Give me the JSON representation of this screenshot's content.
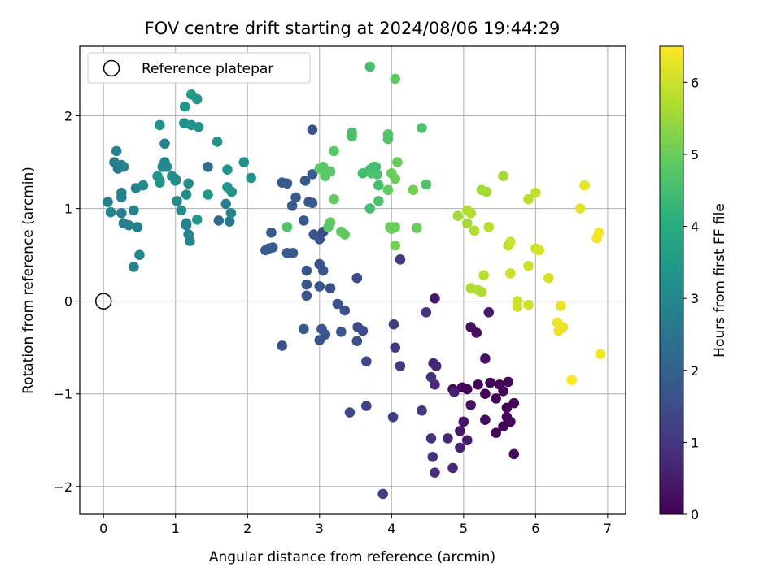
{
  "chart_data": {
    "type": "scatter",
    "title": "FOV centre drift starting at 2024/08/06 19:44:29",
    "xlabel": "Angular distance from reference (arcmin)",
    "ylabel": "Rotation from reference (arcmin)",
    "xlim": [
      -0.33,
      7.25
    ],
    "ylim": [
      -2.3,
      2.75
    ],
    "xticks": [
      0,
      1,
      2,
      3,
      4,
      5,
      6,
      7
    ],
    "yticks": [
      -2,
      -1,
      0,
      1,
      2
    ],
    "xtick_labels": [
      "0",
      "1",
      "2",
      "3",
      "4",
      "5",
      "6",
      "7"
    ],
    "ytick_labels": [
      "−2",
      "−1",
      "0",
      "1",
      "2"
    ],
    "grid": true,
    "legend": {
      "position": "top-left",
      "entries": [
        {
          "label": "Reference platepar",
          "marker": "hollow-circle"
        }
      ]
    },
    "reference_point": {
      "x": 0,
      "y": 0
    },
    "colorbar": {
      "label": "Hours from first FF file",
      "range": [
        0,
        6.5
      ],
      "ticks": [
        0,
        1,
        2,
        3,
        4,
        5,
        6
      ],
      "tick_labels": [
        "0",
        "1",
        "2",
        "3",
        "4",
        "5",
        "6"
      ],
      "colormap": "viridis"
    },
    "series": [
      {
        "columns": [
          "x",
          "y",
          "hours"
        ],
        "points": [
          [
            5.1,
            -0.28,
            0.3
          ],
          [
            5.18,
            -0.34,
            0.25
          ],
          [
            5.3,
            -0.62,
            0.3
          ],
          [
            5.35,
            -0.12,
            0.5
          ],
          [
            4.6,
            0.03,
            0.4
          ],
          [
            4.85,
            -0.95,
            0.1
          ],
          [
            4.98,
            -0.93,
            0.1
          ],
          [
            5.05,
            -0.95,
            0.05
          ],
          [
            5.2,
            -0.9,
            0.05
          ],
          [
            5.37,
            -0.88,
            0.1
          ],
          [
            5.5,
            -0.9,
            0.1
          ],
          [
            5.62,
            -0.87,
            0.05
          ],
          [
            5.3,
            -1.0,
            0.1
          ],
          [
            5.45,
            -1.05,
            0.05
          ],
          [
            5.55,
            -0.97,
            0.1
          ],
          [
            5.6,
            -1.15,
            0.05
          ],
          [
            5.7,
            -1.1,
            0.05
          ],
          [
            5.6,
            -1.25,
            0.1
          ],
          [
            5.65,
            -1.3,
            0.1
          ],
          [
            5.55,
            -1.35,
            0.1
          ],
          [
            5.45,
            -1.42,
            0.15
          ],
          [
            5.3,
            -1.28,
            0.2
          ],
          [
            5.1,
            -1.12,
            0.3
          ],
          [
            5.0,
            -1.3,
            0.4
          ],
          [
            4.95,
            -1.4,
            0.45
          ],
          [
            5.05,
            -1.5,
            0.5
          ],
          [
            4.95,
            -1.58,
            0.6
          ],
          [
            4.78,
            -1.48,
            0.7
          ],
          [
            4.55,
            -1.48,
            0.9
          ],
          [
            4.57,
            -1.68,
            0.9
          ],
          [
            4.6,
            -1.85,
            0.8
          ],
          [
            4.85,
            -1.8,
            0.7
          ],
          [
            5.7,
            -1.65,
            0.2
          ],
          [
            4.87,
            -0.98,
            0.6
          ],
          [
            4.58,
            -0.67,
            0.7
          ],
          [
            4.6,
            -0.9,
            0.8
          ],
          [
            4.62,
            -0.7,
            0.7
          ],
          [
            4.55,
            -0.82,
            0.9
          ],
          [
            4.48,
            -0.12,
            0.9
          ],
          [
            4.42,
            -1.18,
            1.0
          ],
          [
            4.12,
            -0.7,
            1.1
          ],
          [
            4.05,
            -0.5,
            1.1
          ],
          [
            4.03,
            -0.25,
            1.2
          ],
          [
            4.12,
            0.45,
            1.1
          ],
          [
            3.88,
            -2.08,
            1.2
          ],
          [
            4.02,
            -1.25,
            1.2
          ],
          [
            3.65,
            -1.13,
            1.3
          ],
          [
            3.42,
            -1.2,
            1.4
          ],
          [
            3.65,
            -0.65,
            1.4
          ],
          [
            3.53,
            -0.28,
            1.5
          ],
          [
            3.6,
            -0.32,
            1.5
          ],
          [
            3.52,
            -0.43,
            1.6
          ],
          [
            3.52,
            0.25,
            1.5
          ],
          [
            3.35,
            -0.1,
            1.6
          ],
          [
            3.25,
            -0.03,
            1.6
          ],
          [
            3.3,
            -0.33,
            1.7
          ],
          [
            3.03,
            -0.3,
            1.7
          ],
          [
            3.08,
            -0.36,
            1.7
          ],
          [
            3.0,
            -0.42,
            1.7
          ],
          [
            2.78,
            -0.3,
            1.8
          ],
          [
            2.48,
            -0.48,
            1.6
          ],
          [
            3.15,
            0.14,
            1.6
          ],
          [
            3.05,
            0.33,
            1.7
          ],
          [
            3.0,
            0.16,
            1.7
          ],
          [
            3.0,
            0.4,
            1.6
          ],
          [
            2.82,
            0.06,
            1.7
          ],
          [
            2.82,
            0.18,
            1.7
          ],
          [
            2.82,
            0.33,
            1.7
          ],
          [
            3.0,
            0.67,
            1.6
          ],
          [
            3.05,
            0.75,
            1.5
          ],
          [
            2.92,
            0.72,
            1.7
          ],
          [
            2.55,
            0.52,
            1.8
          ],
          [
            2.63,
            0.52,
            1.8
          ],
          [
            2.3,
            0.57,
            1.8
          ],
          [
            2.25,
            0.55,
            1.8
          ],
          [
            2.33,
            0.74,
            1.8
          ],
          [
            2.78,
            0.87,
            1.8
          ],
          [
            2.62,
            1.03,
            1.8
          ],
          [
            2.67,
            1.12,
            1.8
          ],
          [
            2.85,
            1.07,
            1.8
          ],
          [
            2.9,
            1.06,
            1.8
          ],
          [
            2.48,
            1.28,
            1.8
          ],
          [
            2.55,
            1.27,
            1.8
          ],
          [
            2.8,
            1.3,
            1.8
          ],
          [
            2.9,
            1.37,
            1.8
          ],
          [
            2.9,
            1.85,
            1.6
          ],
          [
            2.35,
            0.58,
            1.9
          ],
          [
            1.45,
            1.45,
            2.3
          ],
          [
            1.6,
            0.87,
            2.3
          ],
          [
            1.75,
            0.86,
            2.5
          ],
          [
            1.7,
            1.05,
            2.7
          ],
          [
            1.77,
            0.95,
            2.9
          ],
          [
            1.95,
            1.5,
            3.2
          ],
          [
            2.05,
            1.33,
            3.3
          ],
          [
            1.78,
            1.18,
            3.3
          ],
          [
            1.72,
            1.23,
            3.4
          ],
          [
            1.72,
            1.42,
            3.4
          ],
          [
            1.58,
            1.72,
            3.3
          ],
          [
            1.45,
            1.15,
            3.4
          ],
          [
            1.3,
            0.88,
            3.4
          ],
          [
            1.2,
            0.65,
            3.0
          ],
          [
            1.18,
            0.72,
            2.9
          ],
          [
            1.15,
            0.82,
            2.8
          ],
          [
            1.15,
            0.84,
            2.8
          ],
          [
            1.18,
            1.27,
            3.1
          ],
          [
            1.15,
            1.15,
            3.2
          ],
          [
            1.08,
            0.98,
            3.2
          ],
          [
            1.02,
            1.08,
            3.0
          ],
          [
            1.0,
            1.3,
            3.1
          ],
          [
            0.95,
            1.35,
            3.2
          ],
          [
            1.0,
            1.32,
            3.2
          ],
          [
            0.88,
            1.45,
            3.2
          ],
          [
            0.82,
            1.45,
            3.0
          ],
          [
            0.85,
            1.5,
            3.0
          ],
          [
            0.85,
            1.7,
            2.9
          ],
          [
            0.78,
            1.28,
            3.3
          ],
          [
            0.75,
            1.35,
            3.4
          ],
          [
            0.78,
            1.3,
            3.3
          ],
          [
            0.78,
            1.9,
            3.3
          ],
          [
            1.12,
            1.92,
            3.2
          ],
          [
            1.22,
            1.9,
            3.3
          ],
          [
            1.32,
            1.88,
            3.3
          ],
          [
            1.13,
            2.1,
            3.4
          ],
          [
            1.22,
            2.23,
            3.5
          ],
          [
            1.3,
            2.18,
            3.4
          ],
          [
            0.55,
            1.25,
            3.1
          ],
          [
            0.45,
            1.22,
            2.9
          ],
          [
            0.42,
            0.98,
            2.9
          ],
          [
            0.5,
            0.5,
            3.0
          ],
          [
            0.42,
            0.37,
            2.9
          ],
          [
            0.47,
            0.8,
            2.8
          ],
          [
            0.35,
            0.82,
            2.9
          ],
          [
            0.28,
            0.84,
            2.8
          ],
          [
            0.25,
            0.95,
            2.7
          ],
          [
            0.1,
            0.96,
            2.9
          ],
          [
            0.06,
            1.07,
            2.8
          ],
          [
            0.25,
            1.17,
            2.9
          ],
          [
            0.25,
            1.12,
            2.8
          ],
          [
            0.15,
            1.5,
            2.7
          ],
          [
            0.18,
            1.62,
            2.8
          ],
          [
            0.2,
            1.45,
            2.7
          ],
          [
            0.28,
            1.45,
            2.8
          ],
          [
            0.25,
            1.47,
            2.9
          ],
          [
            0.2,
            1.43,
            2.7
          ],
          [
            2.55,
            0.8,
            4.7
          ],
          [
            3.05,
            1.45,
            4.8
          ],
          [
            3.15,
            1.4,
            4.8
          ],
          [
            3.08,
            1.35,
            4.8
          ],
          [
            3.0,
            1.43,
            4.8
          ],
          [
            3.2,
            1.62,
            4.8
          ],
          [
            3.2,
            1.1,
            4.9
          ],
          [
            3.15,
            0.85,
            4.9
          ],
          [
            3.12,
            0.8,
            4.8
          ],
          [
            3.3,
            0.75,
            4.9
          ],
          [
            3.35,
            0.72,
            4.9
          ],
          [
            3.45,
            1.78,
            4.6
          ],
          [
            3.45,
            1.82,
            4.6
          ],
          [
            3.6,
            1.38,
            4.5
          ],
          [
            3.7,
            1.42,
            4.5
          ],
          [
            3.75,
            1.45,
            4.5
          ],
          [
            3.8,
            1.37,
            4.6
          ],
          [
            3.82,
            1.25,
            4.5
          ],
          [
            3.82,
            1.08,
            4.6
          ],
          [
            3.7,
            1.0,
            4.5
          ],
          [
            3.95,
            1.75,
            4.7
          ],
          [
            3.95,
            1.8,
            4.7
          ],
          [
            3.95,
            1.2,
            4.9
          ],
          [
            4.0,
            1.38,
            5.0
          ],
          [
            4.05,
            1.32,
            5.0
          ],
          [
            4.08,
            1.5,
            5.0
          ],
          [
            3.98,
            0.8,
            5.0
          ],
          [
            4.0,
            0.78,
            5.0
          ],
          [
            4.05,
            0.8,
            5.0
          ],
          [
            4.05,
            0.6,
            5.1
          ],
          [
            4.3,
            1.2,
            5.1
          ],
          [
            4.35,
            0.79,
            5.0
          ],
          [
            4.42,
            1.87,
            4.6
          ],
          [
            4.48,
            1.26,
            4.7
          ],
          [
            4.05,
            2.4,
            4.9
          ],
          [
            3.7,
            2.53,
            4.5
          ],
          [
            3.72,
            1.38,
            4.6
          ],
          [
            3.78,
            1.45,
            4.5
          ],
          [
            4.92,
            0.92,
            5.6
          ],
          [
            5.05,
            0.98,
            5.7
          ],
          [
            5.1,
            0.95,
            5.7
          ],
          [
            5.05,
            0.84,
            5.6
          ],
          [
            5.15,
            0.76,
            5.7
          ],
          [
            5.35,
            0.8,
            5.8
          ],
          [
            5.25,
            1.2,
            5.6
          ],
          [
            5.32,
            1.18,
            5.6
          ],
          [
            5.55,
            1.35,
            5.6
          ],
          [
            5.1,
            0.14,
            5.7
          ],
          [
            5.2,
            0.12,
            5.8
          ],
          [
            5.25,
            0.1,
            5.7
          ],
          [
            5.28,
            0.28,
            5.8
          ],
          [
            5.62,
            0.6,
            5.9
          ],
          [
            5.65,
            0.64,
            6.0
          ],
          [
            5.65,
            0.3,
            6.0
          ],
          [
            5.75,
            0.0,
            6.0
          ],
          [
            5.75,
            -0.06,
            6.0
          ],
          [
            5.9,
            -0.04,
            6.0
          ],
          [
            5.9,
            0.38,
            6.0
          ],
          [
            6.0,
            0.57,
            6.0
          ],
          [
            6.05,
            0.55,
            6.1
          ],
          [
            5.9,
            1.1,
            5.8
          ],
          [
            6.0,
            1.17,
            5.9
          ],
          [
            6.18,
            0.25,
            6.1
          ],
          [
            6.3,
            -0.23,
            6.3
          ],
          [
            6.32,
            -0.32,
            6.3
          ],
          [
            6.35,
            -0.05,
            6.3
          ],
          [
            6.38,
            -0.28,
            6.3
          ],
          [
            6.5,
            -0.85,
            6.5
          ],
          [
            6.62,
            1.0,
            6.2
          ],
          [
            6.68,
            1.25,
            6.3
          ],
          [
            6.85,
            0.68,
            6.4
          ],
          [
            6.88,
            0.74,
            6.4
          ],
          [
            6.9,
            -0.57,
            6.4
          ]
        ]
      }
    ]
  }
}
